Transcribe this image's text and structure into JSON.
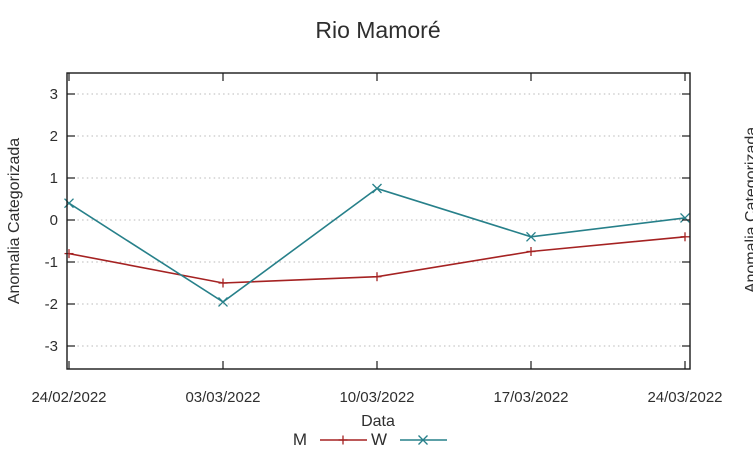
{
  "page": {
    "background": "#ffffff",
    "text_color": "#2e2e2e",
    "grid_color": "#b9b9b9",
    "border_color": "#1a1a1a"
  },
  "chart_data": {
    "type": "line",
    "title": "Rio Mamoré",
    "xlabel": "Data",
    "ylabel": "Anomalia Categorizada",
    "x_tick_labels": [
      "24/02/2022",
      "03/03/2022",
      "10/03/2022",
      "17/03/2022",
      "24/03/2022"
    ],
    "y_tick_labels": [
      "3",
      "2",
      "1",
      "0",
      "-1",
      "-2",
      "-3"
    ],
    "y_ticks": [
      3,
      2,
      1,
      0,
      -1,
      -2,
      -3
    ],
    "ylim": [
      -3.5,
      3.5
    ],
    "grid": "horizontal dotted gridlines at integer y values",
    "legend_position": "bottom-center",
    "series": [
      {
        "name": "M",
        "color": "#a52222",
        "marker": "plus",
        "x": [
          "24/02/2022",
          "03/03/2022",
          "10/03/2022",
          "17/03/2022",
          "24/03/2022"
        ],
        "values": [
          -0.8,
          -1.5,
          -1.35,
          -0.75,
          -0.4
        ]
      },
      {
        "name": "W",
        "color": "#27808a",
        "marker": "cross",
        "x": [
          "24/02/2022",
          "03/03/2022",
          "10/03/2022",
          "17/03/2022",
          "24/03/2022"
        ],
        "values": [
          0.4,
          -1.95,
          0.75,
          -0.4,
          0.05
        ]
      }
    ]
  },
  "adjacent_chart_fragment": {
    "ylabel": "Anomalia Categorizada"
  }
}
